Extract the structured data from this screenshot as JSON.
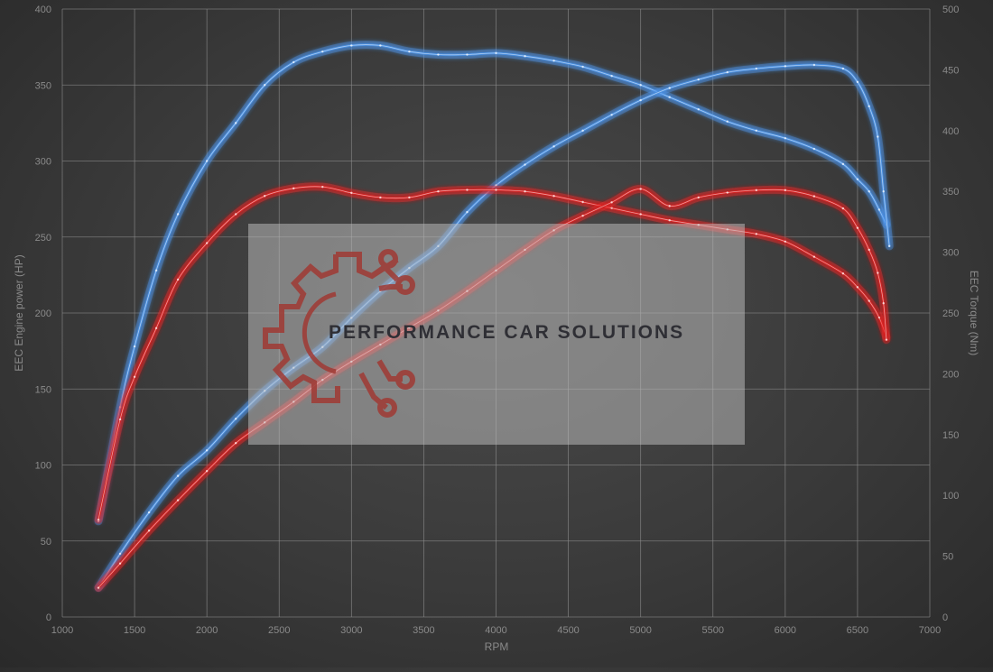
{
  "chart_data": {
    "type": "line",
    "title": "",
    "xlabel": "RPM",
    "ylabel_left": "EEC Engine power (HP)",
    "ylabel_right": "EEC Torque (Nm)",
    "xlim": [
      1000,
      7000
    ],
    "ylim_left": [
      0,
      400
    ],
    "ylim_right": [
      0,
      500
    ],
    "x_ticks": [
      1000,
      1500,
      2000,
      2500,
      3000,
      3500,
      4000,
      4500,
      5000,
      5500,
      6000,
      6500,
      7000
    ],
    "y_left_ticks": [
      0,
      50,
      100,
      150,
      200,
      250,
      300,
      350,
      400
    ],
    "y_right_ticks": [
      0,
      50,
      100,
      150,
      200,
      250,
      300,
      350,
      400,
      450,
      500
    ],
    "grid": true,
    "series": [
      {
        "axis": "left",
        "color": "#4a8fe0",
        "glow": "#5aa0ff",
        "x": [
          1250,
          1400,
          1500,
          1650,
          1800,
          2000,
          2200,
          2400,
          2600,
          2800,
          3000,
          3200,
          3400,
          3600,
          3800,
          4000,
          4200,
          4400,
          4600,
          4800,
          5000,
          5200,
          5400,
          5600,
          5800,
          6000,
          6200,
          6400,
          6500,
          6580,
          6650,
          6700
        ],
        "values": [
          63,
          138,
          178,
          228,
          265,
          300,
          325,
          350,
          365,
          372,
          376,
          376,
          372,
          370,
          370,
          371,
          369,
          366,
          362,
          356,
          350,
          342,
          334,
          326,
          320,
          315,
          308,
          298,
          288,
          280,
          268,
          258
        ]
      },
      {
        "axis": "right",
        "color": "#4a8fe0",
        "glow": "#5aa0ff",
        "x": [
          1250,
          1400,
          1600,
          1800,
          2000,
          2200,
          2400,
          2600,
          2800,
          3000,
          3200,
          3400,
          3600,
          3800,
          4000,
          4200,
          4400,
          4600,
          4800,
          5000,
          5200,
          5400,
          5600,
          5800,
          6000,
          6200,
          6400,
          6500,
          6580,
          6640,
          6680,
          6720
        ],
        "values": [
          24,
          52,
          86,
          116,
          137,
          163,
          186,
          205,
          222,
          246,
          268,
          287,
          305,
          333,
          355,
          372,
          387,
          400,
          413,
          425,
          435,
          442,
          448,
          451,
          453,
          454,
          451,
          440,
          420,
          395,
          350,
          305
        ]
      },
      {
        "axis": "left",
        "color": "#d42424",
        "glow": "#ff3030",
        "x": [
          1250,
          1400,
          1500,
          1650,
          1800,
          2000,
          2200,
          2400,
          2600,
          2800,
          3000,
          3200,
          3400,
          3600,
          3800,
          4000,
          4200,
          4400,
          4600,
          4800,
          5000,
          5200,
          5400,
          5600,
          5800,
          6000,
          6200,
          6400,
          6500,
          6580,
          6650,
          6700
        ],
        "values": [
          64,
          130,
          158,
          190,
          222,
          246,
          265,
          277,
          282,
          283,
          279,
          276,
          276,
          280,
          281,
          281,
          280,
          277,
          273,
          269,
          265,
          261,
          258,
          255,
          252,
          247,
          237,
          226,
          217,
          208,
          197,
          184
        ]
      },
      {
        "axis": "right",
        "color": "#d42424",
        "glow": "#ff3030",
        "x": [
          1250,
          1400,
          1600,
          1800,
          2000,
          2200,
          2400,
          2600,
          2800,
          3000,
          3200,
          3400,
          3600,
          3800,
          4000,
          4200,
          4400,
          4600,
          4800,
          5000,
          5200,
          5400,
          5600,
          5800,
          6000,
          6200,
          6400,
          6500,
          6580,
          6640,
          6680,
          6700
        ],
        "values": [
          24,
          44,
          71,
          96,
          120,
          143,
          160,
          177,
          195,
          210,
          224,
          238,
          252,
          268,
          285,
          302,
          318,
          330,
          341,
          352,
          338,
          345,
          349,
          351,
          351,
          346,
          336,
          320,
          302,
          283,
          258,
          228
        ]
      }
    ]
  },
  "watermark": {
    "company": "PERFORMANCE CAR SOLUTIONS",
    "logo_icon": "gear-circuit-logo-icon",
    "logo_color": "#a03a34"
  }
}
